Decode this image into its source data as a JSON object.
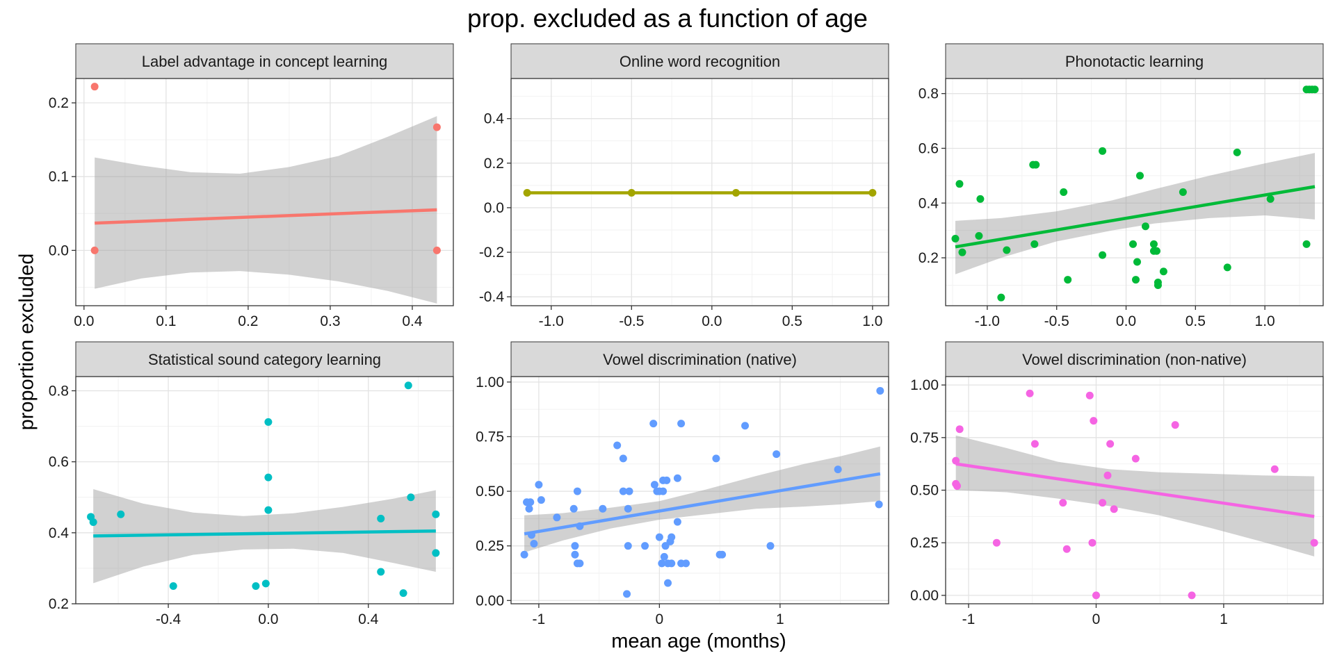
{
  "title": "prop. excluded as a function of age",
  "xlabel": "mean age (months)",
  "ylabel": "proportion excluded",
  "chart_data": [
    {
      "type": "scatter",
      "title": "Label advantage in concept learning",
      "color": "#F8766D",
      "xlim": [
        -0.01,
        0.45
      ],
      "ylim": [
        -0.075,
        0.233
      ],
      "xticks": [
        0.0,
        0.1,
        0.2,
        0.3,
        0.4
      ],
      "xtick_labels": [
        "0.0",
        "0.1",
        "0.2",
        "0.3",
        "0.4"
      ],
      "yticks": [
        0.0,
        0.1,
        0.2
      ],
      "ytick_labels": [
        "0.0",
        "0.1",
        "0.2"
      ],
      "points": [
        [
          0.013,
          0.222
        ],
        [
          0.013,
          0.0
        ],
        [
          0.43,
          0.167
        ],
        [
          0.43,
          0.0
        ]
      ],
      "fit_line": [
        [
          0.013,
          0.037
        ],
        [
          0.43,
          0.055
        ]
      ],
      "ci_band": [
        [
          0.013,
          -0.052,
          0.126
        ],
        [
          0.07,
          -0.038,
          0.115
        ],
        [
          0.13,
          -0.03,
          0.106
        ],
        [
          0.19,
          -0.028,
          0.104
        ],
        [
          0.25,
          -0.033,
          0.113
        ],
        [
          0.31,
          -0.042,
          0.128
        ],
        [
          0.37,
          -0.055,
          0.154
        ],
        [
          0.43,
          -0.072,
          0.182
        ]
      ]
    },
    {
      "type": "scatter",
      "title": "Online word recognition",
      "color": "#A3A500",
      "xlim": [
        -1.25,
        1.1
      ],
      "ylim": [
        -0.44,
        0.58
      ],
      "xticks": [
        -1.0,
        -0.5,
        0.0,
        0.5,
        1.0
      ],
      "xtick_labels": [
        "-1.0",
        "-0.5",
        "0.0",
        "0.5",
        "1.0"
      ],
      "yticks": [
        -0.4,
        -0.2,
        0.0,
        0.2,
        0.4
      ],
      "ytick_labels": [
        "-0.4",
        "-0.2",
        "0.0",
        "0.2",
        "0.4"
      ],
      "points": [
        [
          -1.15,
          0.067
        ],
        [
          -0.5,
          0.067
        ],
        [
          0.15,
          0.067
        ],
        [
          1.0,
          0.067
        ]
      ],
      "fit_line": [
        [
          -1.15,
          0.067
        ],
        [
          1.0,
          0.067
        ]
      ],
      "ci_band": []
    },
    {
      "type": "scatter",
      "title": "Phonotactic learning",
      "color": "#00BA38",
      "xlim": [
        -1.3,
        1.42
      ],
      "ylim": [
        0.025,
        0.855
      ],
      "xticks": [
        -1.0,
        -0.5,
        0.0,
        0.5,
        1.0
      ],
      "xtick_labels": [
        "-1.0",
        "-0.5",
        "0.0",
        "0.5",
        "1.0"
      ],
      "yticks": [
        0.2,
        0.4,
        0.6,
        0.8
      ],
      "ytick_labels": [
        "0.2",
        "0.4",
        "0.6",
        "0.8"
      ],
      "points": [
        [
          -1.23,
          0.27
        ],
        [
          -1.2,
          0.47
        ],
        [
          -1.18,
          0.22
        ],
        [
          -1.06,
          0.28
        ],
        [
          -1.05,
          0.415
        ],
        [
          -0.86,
          0.228
        ],
        [
          -0.9,
          0.055
        ],
        [
          -0.65,
          0.54
        ],
        [
          -0.67,
          0.54
        ],
        [
          -0.66,
          0.25
        ],
        [
          -0.45,
          0.44
        ],
        [
          -0.42,
          0.12
        ],
        [
          -0.17,
          0.59
        ],
        [
          -0.17,
          0.21
        ],
        [
          0.05,
          0.25
        ],
        [
          0.08,
          0.185
        ],
        [
          0.07,
          0.12
        ],
        [
          0.1,
          0.5
        ],
        [
          0.14,
          0.315
        ],
        [
          0.2,
          0.25
        ],
        [
          0.2,
          0.225
        ],
        [
          0.22,
          0.225
        ],
        [
          0.23,
          0.11
        ],
        [
          0.23,
          0.1
        ],
        [
          0.27,
          0.15
        ],
        [
          0.41,
          0.44
        ],
        [
          0.73,
          0.165
        ],
        [
          0.8,
          0.585
        ],
        [
          1.04,
          0.415
        ],
        [
          1.3,
          0.25
        ],
        [
          1.3,
          0.815
        ],
        [
          1.32,
          0.815
        ],
        [
          1.34,
          0.815
        ],
        [
          1.36,
          0.815
        ]
      ],
      "fit_line": [
        [
          -1.23,
          0.24
        ],
        [
          1.36,
          0.46
        ]
      ],
      "ci_band": [
        [
          -1.23,
          0.14,
          0.335
        ],
        [
          -0.9,
          0.2,
          0.345
        ],
        [
          -0.5,
          0.26,
          0.37
        ],
        [
          -0.1,
          0.3,
          0.41
        ],
        [
          0.2,
          0.325,
          0.45
        ],
        [
          0.6,
          0.345,
          0.5
        ],
        [
          1.0,
          0.355,
          0.545
        ],
        [
          1.36,
          0.34,
          0.583
        ]
      ]
    },
    {
      "type": "scatter",
      "title": "Statistical sound category learning",
      "color": "#00BFC4",
      "xlim": [
        -0.77,
        0.74
      ],
      "ylim": [
        0.2,
        0.84
      ],
      "xticks": [
        -0.4,
        0.0,
        0.4
      ],
      "xtick_labels": [
        "-0.4",
        "0.0",
        "0.4"
      ],
      "yticks": [
        0.2,
        0.4,
        0.6,
        0.8
      ],
      "ytick_labels": [
        "0.2",
        "0.4",
        "0.6",
        "0.8"
      ],
      "points": [
        [
          -0.71,
          0.445
        ],
        [
          -0.7,
          0.43
        ],
        [
          -0.59,
          0.452
        ],
        [
          -0.38,
          0.25
        ],
        [
          -0.05,
          0.25
        ],
        [
          -0.01,
          0.257
        ],
        [
          0.0,
          0.712
        ],
        [
          0.0,
          0.556
        ],
        [
          0.0,
          0.464
        ],
        [
          0.45,
          0.29
        ],
        [
          0.45,
          0.44
        ],
        [
          0.54,
          0.23
        ],
        [
          0.56,
          0.815
        ],
        [
          0.57,
          0.5
        ],
        [
          0.67,
          0.452
        ],
        [
          0.67,
          0.343
        ]
      ],
      "fit_line": [
        [
          -0.7,
          0.391
        ],
        [
          0.67,
          0.405
        ]
      ],
      "ci_band": [
        [
          -0.7,
          0.258,
          0.523
        ],
        [
          -0.5,
          0.305,
          0.482
        ],
        [
          -0.3,
          0.338,
          0.457
        ],
        [
          -0.1,
          0.353,
          0.447
        ],
        [
          0.1,
          0.355,
          0.455
        ],
        [
          0.3,
          0.343,
          0.473
        ],
        [
          0.5,
          0.315,
          0.496
        ],
        [
          0.67,
          0.29,
          0.52
        ]
      ]
    },
    {
      "type": "scatter",
      "title": "Vowel discrimination (native)",
      "color": "#619CFF",
      "xlim": [
        -1.23,
        1.9
      ],
      "ylim": [
        -0.015,
        1.025
      ],
      "xticks": [
        -1,
        0,
        1
      ],
      "xtick_labels": [
        "-1",
        "0",
        "1"
      ],
      "yticks": [
        0.0,
        0.25,
        0.5,
        0.75,
        1.0
      ],
      "ytick_labels": [
        "0.00",
        "0.25",
        "0.50",
        "0.75",
        "1.00"
      ],
      "points": [
        [
          -1.12,
          0.21
        ],
        [
          -1.1,
          0.45
        ],
        [
          -1.08,
          0.42
        ],
        [
          -1.07,
          0.45
        ],
        [
          -1.06,
          0.3
        ],
        [
          -1.04,
          0.26
        ],
        [
          -1.0,
          0.53
        ],
        [
          -0.98,
          0.46
        ],
        [
          -0.85,
          0.38
        ],
        [
          -0.71,
          0.42
        ],
        [
          -0.7,
          0.25
        ],
        [
          -0.7,
          0.21
        ],
        [
          -0.68,
          0.5
        ],
        [
          -0.68,
          0.17
        ],
        [
          -0.66,
          0.17
        ],
        [
          -0.66,
          0.34
        ],
        [
          -0.47,
          0.42
        ],
        [
          -0.35,
          0.71
        ],
        [
          -0.3,
          0.5
        ],
        [
          -0.3,
          0.65
        ],
        [
          -0.25,
          0.5
        ],
        [
          -0.26,
          0.42
        ],
        [
          -0.26,
          0.25
        ],
        [
          -0.27,
          0.03
        ],
        [
          -0.12,
          0.25
        ],
        [
          -0.05,
          0.81
        ],
        [
          -0.04,
          0.53
        ],
        [
          -0.02,
          0.5
        ],
        [
          0.0,
          0.29
        ],
        [
          0.0,
          0.5
        ],
        [
          0.02,
          0.17
        ],
        [
          0.03,
          0.5
        ],
        [
          0.03,
          0.55
        ],
        [
          0.04,
          0.2
        ],
        [
          0.05,
          0.25
        ],
        [
          0.06,
          0.55
        ],
        [
          0.07,
          0.08
        ],
        [
          0.07,
          0.17
        ],
        [
          0.09,
          0.27
        ],
        [
          0.1,
          0.29
        ],
        [
          0.1,
          0.17
        ],
        [
          0.15,
          0.56
        ],
        [
          0.15,
          0.36
        ],
        [
          0.18,
          0.81
        ],
        [
          0.18,
          0.17
        ],
        [
          0.22,
          0.17
        ],
        [
          0.47,
          0.65
        ],
        [
          0.5,
          0.21
        ],
        [
          0.52,
          0.21
        ],
        [
          0.71,
          0.8
        ],
        [
          0.92,
          0.25
        ],
        [
          0.97,
          0.67
        ],
        [
          1.48,
          0.6
        ],
        [
          1.82,
          0.44
        ],
        [
          1.83,
          0.96
        ]
      ],
      "fit_line": [
        [
          -1.12,
          0.305
        ],
        [
          1.83,
          0.58
        ]
      ],
      "ci_band": [
        [
          -1.12,
          0.22,
          0.39
        ],
        [
          -0.8,
          0.275,
          0.4
        ],
        [
          -0.4,
          0.33,
          0.425
        ],
        [
          0.0,
          0.37,
          0.455
        ],
        [
          0.4,
          0.395,
          0.51
        ],
        [
          0.8,
          0.42,
          0.57
        ],
        [
          1.2,
          0.43,
          0.625
        ],
        [
          1.5,
          0.44,
          0.66
        ],
        [
          1.83,
          0.455,
          0.705
        ]
      ]
    },
    {
      "type": "scatter",
      "title": "Vowel discrimination (non-native)",
      "color": "#F564E3",
      "xlim": [
        -1.18,
        1.78
      ],
      "ylim": [
        -0.04,
        1.04
      ],
      "xticks": [
        -1,
        0,
        1
      ],
      "xtick_labels": [
        "-1",
        "0",
        "1"
      ],
      "yticks": [
        0.0,
        0.25,
        0.5,
        0.75,
        1.0
      ],
      "ytick_labels": [
        "0.00",
        "0.25",
        "0.50",
        "0.75",
        "1.00"
      ],
      "points": [
        [
          -1.1,
          0.64
        ],
        [
          -1.1,
          0.53
        ],
        [
          -1.09,
          0.52
        ],
        [
          -1.07,
          0.79
        ],
        [
          -0.78,
          0.25
        ],
        [
          -0.52,
          0.96
        ],
        [
          -0.48,
          0.72
        ],
        [
          -0.26,
          0.44
        ],
        [
          -0.23,
          0.22
        ],
        [
          -0.05,
          0.95
        ],
        [
          -0.02,
          0.83
        ],
        [
          -0.03,
          0.25
        ],
        [
          0.0,
          0.0
        ],
        [
          0.05,
          0.44
        ],
        [
          0.09,
          0.57
        ],
        [
          0.11,
          0.72
        ],
        [
          0.14,
          0.41
        ],
        [
          0.31,
          0.65
        ],
        [
          0.62,
          0.81
        ],
        [
          0.75,
          0.0
        ],
        [
          1.4,
          0.6
        ],
        [
          1.71,
          0.25
        ]
      ],
      "fit_line": [
        [
          -1.1,
          0.625
        ],
        [
          1.71,
          0.375
        ]
      ],
      "ci_band": [
        [
          -1.1,
          0.5,
          0.76
        ],
        [
          -0.7,
          0.49,
          0.7
        ],
        [
          -0.3,
          0.46,
          0.635
        ],
        [
          0.1,
          0.425,
          0.6
        ],
        [
          0.5,
          0.38,
          0.585
        ],
        [
          0.9,
          0.32,
          0.578
        ],
        [
          1.3,
          0.255,
          0.57
        ],
        [
          1.71,
          0.185,
          0.566
        ]
      ]
    }
  ]
}
